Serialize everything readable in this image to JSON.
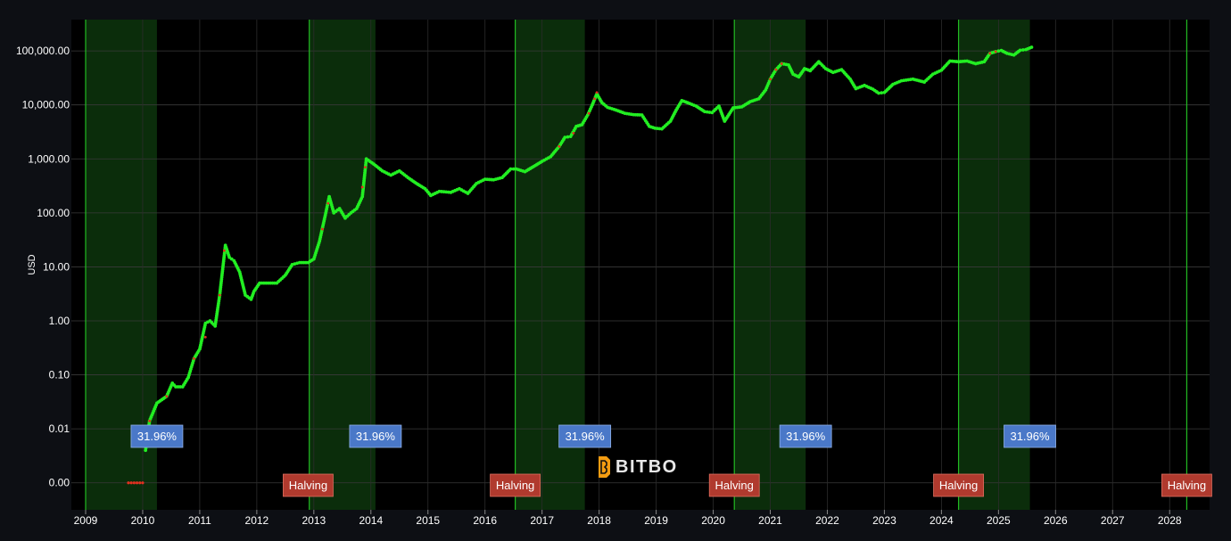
{
  "chart_data": {
    "type": "scatter",
    "yscale": "log",
    "ylabel": "USD",
    "x_ticks": [
      "2009",
      "2010",
      "2011",
      "2012",
      "2013",
      "2014",
      "2015",
      "2016",
      "2017",
      "2018",
      "2019",
      "2020",
      "2021",
      "2022",
      "2023",
      "2024",
      "2025",
      "2026",
      "2027",
      "2028"
    ],
    "y_ticks": [
      {
        "value": 0.001,
        "label": "0.00"
      },
      {
        "value": 0.01,
        "label": "0.01"
      },
      {
        "value": 0.1,
        "label": "0.10"
      },
      {
        "value": 1,
        "label": "1.00"
      },
      {
        "value": 10,
        "label": "10.00"
      },
      {
        "value": 100,
        "label": "100.00"
      },
      {
        "value": 1000,
        "label": "1,000.00"
      },
      {
        "value": 10000,
        "label": "10,000.00"
      },
      {
        "value": 100000,
        "label": "100,000.00"
      }
    ],
    "xlim": [
      2008.75,
      2028.7
    ],
    "ylim_log10": [
      -3.5,
      5.58
    ],
    "grid": true,
    "shaded_periods": [
      {
        "start": 2009.0,
        "end": 2010.25,
        "label": "31.96%"
      },
      {
        "start": 2012.92,
        "end": 2014.08,
        "label": "31.96%"
      },
      {
        "start": 2016.53,
        "end": 2017.75,
        "label": "31.96%"
      },
      {
        "start": 2020.37,
        "end": 2021.62,
        "label": "31.96%"
      },
      {
        "start": 2024.3,
        "end": 2025.55,
        "label": "31.96%"
      }
    ],
    "halvings": [
      {
        "date": 2012.9,
        "label": "Halving"
      },
      {
        "date": 2016.53,
        "label": "Halving"
      },
      {
        "date": 2020.37,
        "label": "Halving"
      },
      {
        "date": 2024.3,
        "label": "Halving"
      },
      {
        "date": 2028.3,
        "label": "Halving"
      }
    ],
    "price_series": {
      "name": "",
      "points": [
        [
          2009.75,
          0.001
        ],
        [
          2009.85,
          0.001
        ],
        [
          2009.95,
          0.001
        ],
        [
          2010.0,
          0.001
        ],
        [
          2010.05,
          0.004
        ],
        [
          2010.12,
          0.014
        ],
        [
          2010.25,
          0.03
        ],
        [
          2010.42,
          0.04
        ],
        [
          2010.52,
          0.07
        ],
        [
          2010.58,
          0.06
        ],
        [
          2010.7,
          0.06
        ],
        [
          2010.8,
          0.09
        ],
        [
          2010.9,
          0.2
        ],
        [
          2011.0,
          0.3
        ],
        [
          2011.1,
          0.9
        ],
        [
          2011.18,
          1.0
        ],
        [
          2011.27,
          0.8
        ],
        [
          2011.35,
          3.0
        ],
        [
          2011.45,
          25
        ],
        [
          2011.52,
          15
        ],
        [
          2011.6,
          13
        ],
        [
          2011.7,
          8
        ],
        [
          2011.8,
          3
        ],
        [
          2011.9,
          2.5
        ],
        [
          2011.95,
          3.5
        ],
        [
          2012.05,
          5
        ],
        [
          2012.2,
          5
        ],
        [
          2012.35,
          5
        ],
        [
          2012.5,
          7
        ],
        [
          2012.62,
          11
        ],
        [
          2012.75,
          12
        ],
        [
          2012.9,
          12
        ],
        [
          2013.0,
          14
        ],
        [
          2013.1,
          30
        ],
        [
          2013.2,
          90
        ],
        [
          2013.27,
          200
        ],
        [
          2013.35,
          100
        ],
        [
          2013.45,
          120
        ],
        [
          2013.55,
          80
        ],
        [
          2013.65,
          100
        ],
        [
          2013.75,
          120
        ],
        [
          2013.85,
          200
        ],
        [
          2013.92,
          1000
        ],
        [
          2014.05,
          800
        ],
        [
          2014.2,
          600
        ],
        [
          2014.35,
          500
        ],
        [
          2014.5,
          600
        ],
        [
          2014.65,
          450
        ],
        [
          2014.8,
          350
        ],
        [
          2014.95,
          280
        ],
        [
          2015.05,
          210
        ],
        [
          2015.2,
          250
        ],
        [
          2015.4,
          240
        ],
        [
          2015.55,
          280
        ],
        [
          2015.7,
          230
        ],
        [
          2015.85,
          350
        ],
        [
          2016.0,
          420
        ],
        [
          2016.15,
          410
        ],
        [
          2016.3,
          450
        ],
        [
          2016.45,
          650
        ],
        [
          2016.55,
          650
        ],
        [
          2016.7,
          580
        ],
        [
          2016.85,
          720
        ],
        [
          2017.0,
          900
        ],
        [
          2017.15,
          1100
        ],
        [
          2017.3,
          1700
        ],
        [
          2017.4,
          2500
        ],
        [
          2017.5,
          2600
        ],
        [
          2017.6,
          4000
        ],
        [
          2017.7,
          4300
        ],
        [
          2017.8,
          6500
        ],
        [
          2017.88,
          10000
        ],
        [
          2017.96,
          16000
        ],
        [
          2018.05,
          11000
        ],
        [
          2018.15,
          9000
        ],
        [
          2018.3,
          8000
        ],
        [
          2018.45,
          7000
        ],
        [
          2018.6,
          6600
        ],
        [
          2018.75,
          6500
        ],
        [
          2018.88,
          4000
        ],
        [
          2018.98,
          3700
        ],
        [
          2019.1,
          3600
        ],
        [
          2019.25,
          5000
        ],
        [
          2019.35,
          8000
        ],
        [
          2019.45,
          12000
        ],
        [
          2019.55,
          11000
        ],
        [
          2019.7,
          9500
        ],
        [
          2019.85,
          7500
        ],
        [
          2019.98,
          7200
        ],
        [
          2020.1,
          9500
        ],
        [
          2020.2,
          5000
        ],
        [
          2020.35,
          8800
        ],
        [
          2020.5,
          9200
        ],
        [
          2020.65,
          11500
        ],
        [
          2020.8,
          13000
        ],
        [
          2020.92,
          19000
        ],
        [
          2021.0,
          30000
        ],
        [
          2021.1,
          45000
        ],
        [
          2021.2,
          58000
        ],
        [
          2021.32,
          55000
        ],
        [
          2021.4,
          37000
        ],
        [
          2021.5,
          33000
        ],
        [
          2021.6,
          47000
        ],
        [
          2021.7,
          43000
        ],
        [
          2021.85,
          63000
        ],
        [
          2021.97,
          47000
        ],
        [
          2022.1,
          40000
        ],
        [
          2022.25,
          45000
        ],
        [
          2022.4,
          30000
        ],
        [
          2022.5,
          20000
        ],
        [
          2022.65,
          23000
        ],
        [
          2022.8,
          19500
        ],
        [
          2022.9,
          16500
        ],
        [
          2023.0,
          17000
        ],
        [
          2023.15,
          24000
        ],
        [
          2023.3,
          28000
        ],
        [
          2023.5,
          30000
        ],
        [
          2023.7,
          26500
        ],
        [
          2023.85,
          37000
        ],
        [
          2024.0,
          44000
        ],
        [
          2024.15,
          65000
        ],
        [
          2024.3,
          63000
        ],
        [
          2024.45,
          65000
        ],
        [
          2024.6,
          58000
        ],
        [
          2024.75,
          63000
        ],
        [
          2024.85,
          90000
        ],
        [
          2024.95,
          97000
        ],
        [
          2025.05,
          102000
        ],
        [
          2025.15,
          90000
        ],
        [
          2025.27,
          84000
        ],
        [
          2025.38,
          103000
        ],
        [
          2025.48,
          106000
        ],
        [
          2025.58,
          117000
        ]
      ]
    },
    "highlight_series": {
      "name": "",
      "points": [
        [
          2010.12,
          0.014
        ],
        [
          2010.42,
          0.04
        ],
        [
          2010.9,
          0.2
        ],
        [
          2011.1,
          0.5
        ],
        [
          2011.35,
          3.0
        ],
        [
          2011.43,
          20
        ],
        [
          2013.15,
          50
        ],
        [
          2013.25,
          150
        ],
        [
          2013.85,
          300
        ],
        [
          2013.9,
          700
        ],
        [
          2017.3,
          1700
        ],
        [
          2017.55,
          3000
        ],
        [
          2017.82,
          7000
        ],
        [
          2017.92,
          13000
        ],
        [
          2017.96,
          17000
        ],
        [
          2021.0,
          30000
        ],
        [
          2021.1,
          45000
        ],
        [
          2021.2,
          58000
        ],
        [
          2024.85,
          90000
        ],
        [
          2024.95,
          97000
        ]
      ]
    },
    "watermark": "BITBO"
  }
}
